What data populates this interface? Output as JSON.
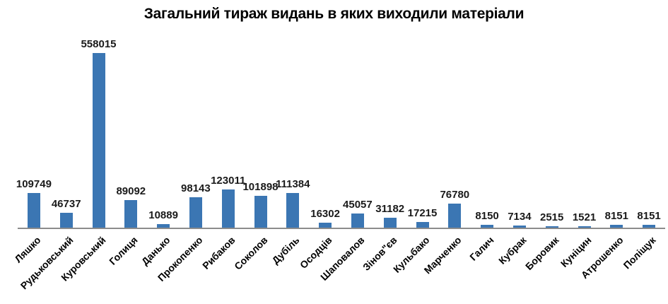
{
  "page": {
    "background": "#ffffff"
  },
  "chart_data": {
    "type": "bar",
    "title": "Загальний тираж видань в яких виходили матеріали",
    "categories": [
      "Ляшко",
      "Рудьковський",
      "Куровський",
      "Голиця",
      "Данько",
      "Прокопенко",
      "Рибаков",
      "Соколов",
      "Дубіль",
      "Осодців",
      "Шаповалов",
      "Зінов\"єв",
      "Кульбако",
      "Марченко",
      "Галич",
      "Кубрак",
      "Боровик",
      "Куніцин",
      "Атрошенко",
      "Поліщук"
    ],
    "values": [
      109749,
      46737,
      558015,
      89092,
      10889,
      98143,
      123011,
      101898,
      111384,
      16302,
      45057,
      31182,
      17215,
      76780,
      8150,
      7134,
      2515,
      1521,
      8151,
      8151
    ],
    "xlabel": "",
    "ylabel": "",
    "ylim": [
      0,
      558015
    ],
    "grid": false,
    "legend": false,
    "value_labels_shown": true,
    "category_label_rotation_deg": 45,
    "bar_color": "#3b76b3",
    "axis_color": "#8c8c8c",
    "text_color": "#1a1a1a"
  }
}
